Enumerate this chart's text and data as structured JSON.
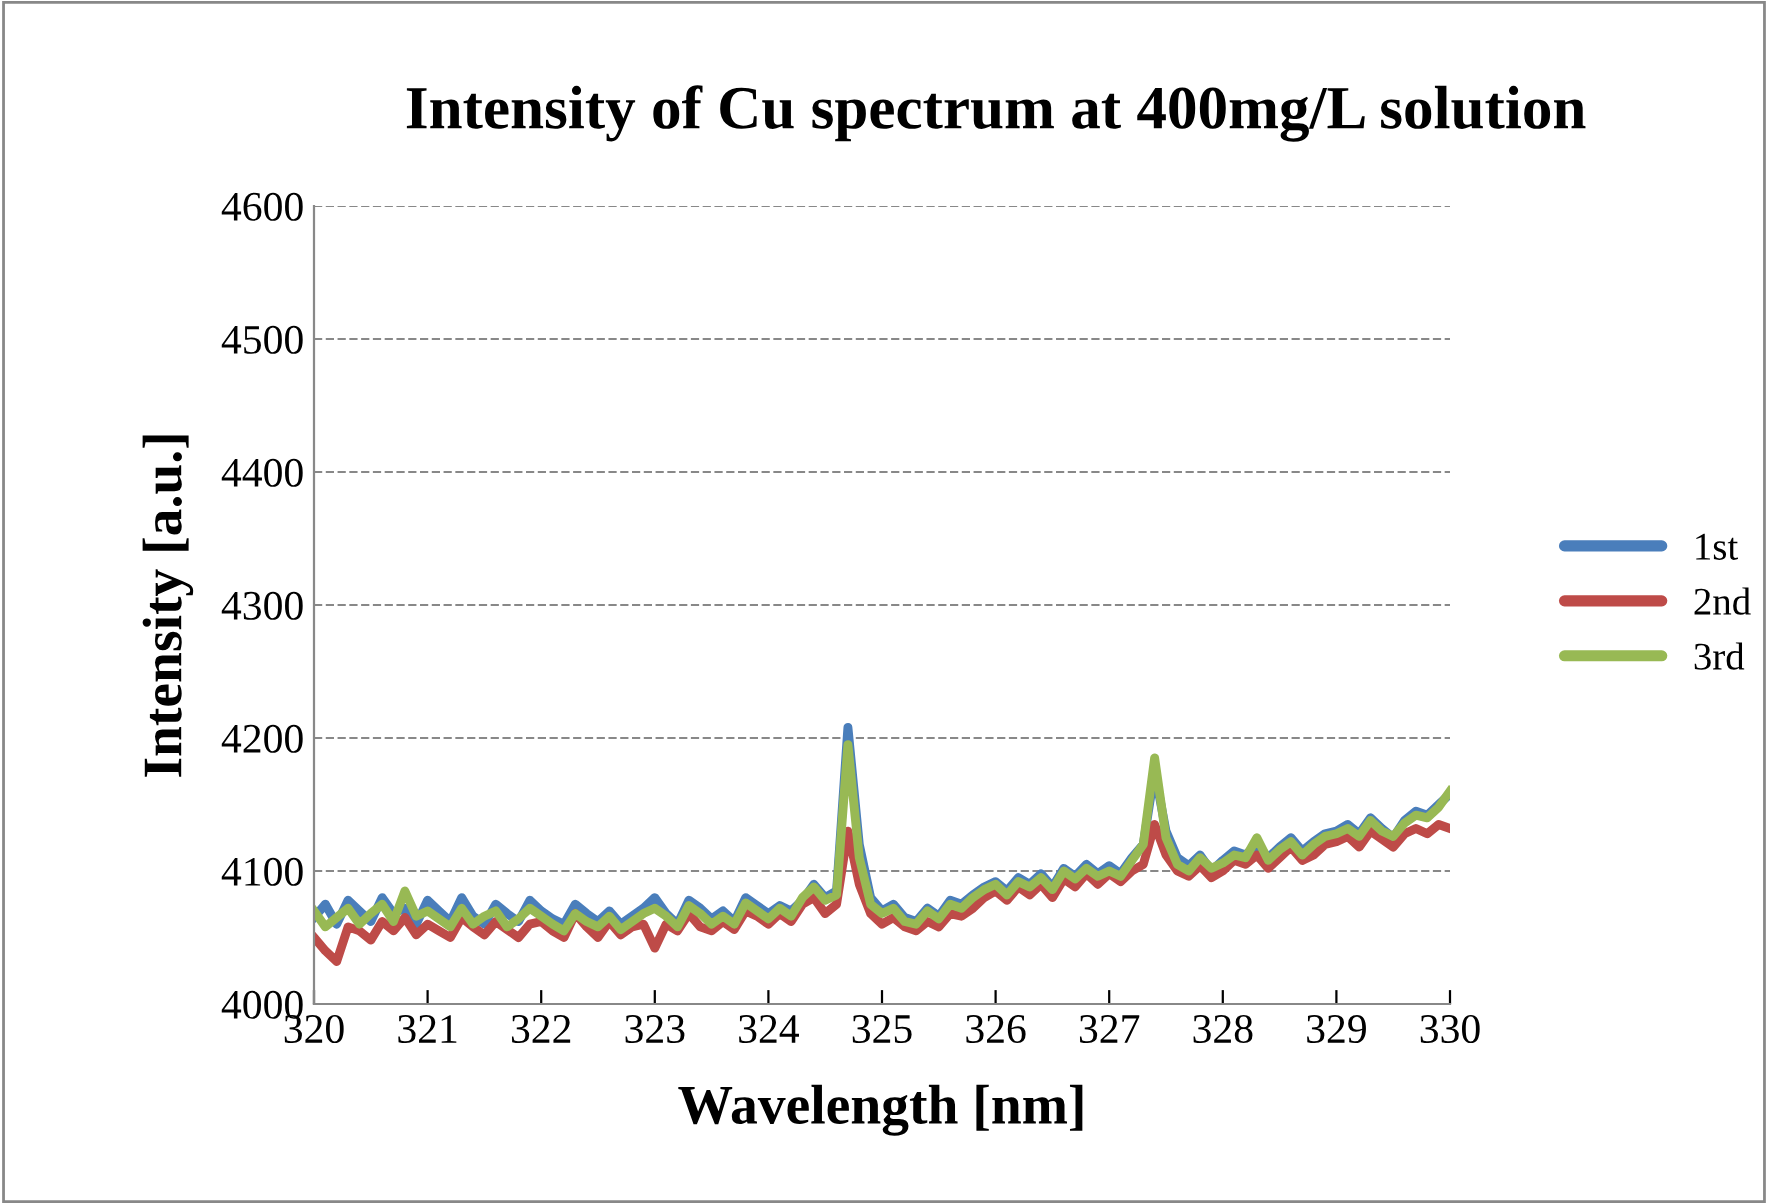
{
  "chart_data": {
    "type": "line",
    "title": "Intensity of Cu spectrum at 400mg/L solution",
    "xlabel": "Wavelength [nm]",
    "ylabel": "Intensity [a.u.]",
    "xlim": [
      320,
      330
    ],
    "xticks": [
      320,
      321,
      322,
      323,
      324,
      325,
      326,
      327,
      328,
      329,
      330
    ],
    "ylim": [
      4000,
      4600
    ],
    "yticks": [
      4000,
      4100,
      4200,
      4300,
      4400,
      4500,
      4600
    ],
    "grid": "y",
    "legend": "right",
    "marker": "none",
    "line_style": "solid",
    "x": [
      320.0,
      320.1,
      320.2,
      320.3,
      320.4,
      320.5,
      320.6,
      320.7,
      320.8,
      320.9,
      321.0,
      321.1,
      321.2,
      321.3,
      321.4,
      321.5,
      321.6,
      321.7,
      321.8,
      321.9,
      322.0,
      322.1,
      322.2,
      322.3,
      322.4,
      322.5,
      322.6,
      322.7,
      322.8,
      322.9,
      323.0,
      323.1,
      323.2,
      323.3,
      323.4,
      323.5,
      323.6,
      323.7,
      323.8,
      323.9,
      324.0,
      324.1,
      324.2,
      324.3,
      324.4,
      324.5,
      324.6,
      324.7,
      324.8,
      324.9,
      325.0,
      325.1,
      325.2,
      325.3,
      325.4,
      325.5,
      325.6,
      325.7,
      325.8,
      325.9,
      326.0,
      326.1,
      326.2,
      326.3,
      326.4,
      326.5,
      326.6,
      326.7,
      326.8,
      326.9,
      327.0,
      327.1,
      327.2,
      327.3,
      327.4,
      327.5,
      327.6,
      327.7,
      327.8,
      327.9,
      328.0,
      328.1,
      328.2,
      328.3,
      328.4,
      328.5,
      328.6,
      328.7,
      328.8,
      328.9,
      329.0,
      329.1,
      329.2,
      329.3,
      329.4,
      329.5,
      329.6,
      329.7,
      329.8,
      329.9,
      330.0
    ],
    "series": [
      {
        "name": "1st",
        "color": "#4a7ebb",
        "values": [
          4065,
          4075,
          4060,
          4078,
          4070,
          4062,
          4080,
          4068,
          4072,
          4060,
          4078,
          4070,
          4062,
          4080,
          4066,
          4060,
          4075,
          4068,
          4062,
          4078,
          4070,
          4064,
          4060,
          4075,
          4068,
          4062,
          4070,
          4060,
          4066,
          4072,
          4080,
          4068,
          4060,
          4078,
          4072,
          4064,
          4070,
          4062,
          4080,
          4074,
          4068,
          4074,
          4070,
          4078,
          4090,
          4080,
          4085,
          4208,
          4120,
          4080,
          4070,
          4075,
          4065,
          4062,
          4072,
          4066,
          4078,
          4075,
          4082,
          4088,
          4092,
          4085,
          4095,
          4090,
          4098,
          4088,
          4102,
          4096,
          4105,
          4098,
          4104,
          4098,
          4110,
          4120,
          4175,
          4130,
          4110,
          4104,
          4112,
          4100,
          4108,
          4115,
          4112,
          4120,
          4110,
          4118,
          4125,
          4115,
          4122,
          4128,
          4130,
          4135,
          4128,
          4140,
          4132,
          4125,
          4138,
          4145,
          4142,
          4150,
          4158
        ]
      },
      {
        "name": "2nd",
        "color": "#be4b48",
        "values": [
          4050,
          4040,
          4032,
          4058,
          4055,
          4048,
          4062,
          4055,
          4065,
          4052,
          4060,
          4055,
          4050,
          4065,
          4058,
          4052,
          4062,
          4056,
          4050,
          4060,
          4062,
          4055,
          4050,
          4068,
          4058,
          4050,
          4062,
          4052,
          4058,
          4060,
          4042,
          4060,
          4055,
          4068,
          4058,
          4055,
          4062,
          4056,
          4070,
          4066,
          4060,
          4068,
          4062,
          4075,
          4080,
          4068,
          4075,
          4130,
          4090,
          4068,
          4060,
          4065,
          4058,
          4055,
          4062,
          4058,
          4068,
          4066,
          4072,
          4080,
          4085,
          4078,
          4088,
          4082,
          4090,
          4080,
          4094,
          4088,
          4098,
          4090,
          4098,
          4092,
          4100,
          4105,
          4135,
          4112,
          4100,
          4096,
          4104,
          4095,
          4100,
          4108,
          4105,
          4112,
          4102,
          4110,
          4118,
          4108,
          4112,
          4120,
          4122,
          4126,
          4118,
          4130,
          4124,
          4118,
          4128,
          4132,
          4128,
          4135,
          4132
        ]
      },
      {
        "name": "3rd",
        "color": "#98b954",
        "values": [
          4070,
          4058,
          4065,
          4072,
          4060,
          4068,
          4075,
          4062,
          4085,
          4066,
          4070,
          4064,
          4058,
          4072,
          4060,
          4066,
          4070,
          4058,
          4064,
          4072,
          4066,
          4060,
          4055,
          4068,
          4062,
          4058,
          4066,
          4056,
          4062,
          4068,
          4072,
          4066,
          4058,
          4074,
          4068,
          4060,
          4066,
          4060,
          4076,
          4070,
          4064,
          4072,
          4066,
          4080,
          4088,
          4078,
          4082,
          4195,
          4110,
          4075,
          4068,
          4072,
          4062,
          4060,
          4070,
          4064,
          4075,
          4072,
          4080,
          4086,
          4090,
          4082,
          4092,
          4088,
          4095,
          4086,
          4100,
          4094,
          4102,
          4096,
          4100,
          4096,
          4108,
          4120,
          4185,
          4125,
          4105,
          4100,
          4110,
          4102,
          4106,
          4112,
          4110,
          4125,
          4108,
          4116,
          4122,
          4112,
          4120,
          4126,
          4128,
          4132,
          4126,
          4138,
          4130,
          4126,
          4136,
          4142,
          4140,
          4148,
          4160
        ]
      }
    ]
  }
}
